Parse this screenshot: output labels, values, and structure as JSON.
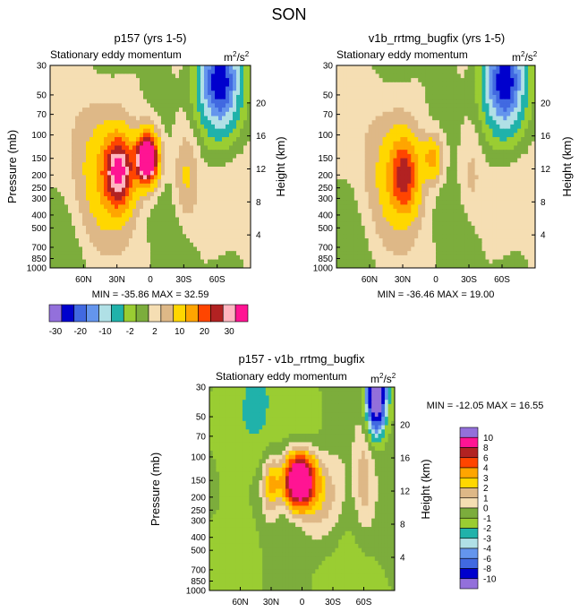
{
  "figure_title": "SON",
  "chart_data": [
    {
      "type": "heatmap",
      "title": "p157 (yrs 1-5)",
      "subtitle_left": "Stationary eddy momentum",
      "units_base": "m",
      "units_sup1": "2",
      "units_mid": "/s",
      "units_sup2": "2",
      "ylabel": "Pressure (mb)",
      "ylabel_right": "Height (km)",
      "xticks": [
        "60N",
        "30N",
        "0",
        "30S",
        "60S"
      ],
      "x_values": [
        60,
        30,
        0,
        -30,
        -60
      ],
      "xlim": [
        90,
        -90
      ],
      "yticks": [
        "30",
        "50",
        "70",
        "100",
        "150",
        "200",
        "250",
        "300",
        "400",
        "500",
        "700",
        "850",
        "1000"
      ],
      "y_values": [
        30,
        50,
        70,
        100,
        150,
        200,
        250,
        300,
        400,
        500,
        700,
        850,
        1000
      ],
      "ylim": [
        1000,
        30
      ],
      "height_ticks": [
        "20",
        "16",
        "12",
        "8",
        "4"
      ],
      "height_values": [
        20,
        16,
        12,
        8,
        4
      ],
      "min_value": -35.86,
      "max_value": 32.59,
      "stats_text": "MIN = -35.86  MAX = 32.59",
      "features": [
        {
          "lat": 28,
          "p": 190,
          "value": 28,
          "sx": 9,
          "sy": 0.42
        },
        {
          "lat": 3,
          "p": 150,
          "value": 32.59,
          "sx": 7,
          "sy": 0.3
        },
        {
          "lat": 3,
          "p": 152,
          "value": 20,
          "sx": 5,
          "sy": 0.22
        },
        {
          "lat": 42,
          "p": 200,
          "value": 8,
          "sx": 18,
          "sy": 0.8
        },
        {
          "lat": -32,
          "p": 210,
          "value": 6,
          "sx": 7,
          "sy": 0.5
        },
        {
          "lat": -62,
          "p": 40,
          "value": -30,
          "sx": 12,
          "sy": 0.55
        },
        {
          "lat": -50,
          "p": 400,
          "value": 1.5,
          "sx": 15,
          "sy": 0.6
        },
        {
          "lat": 70,
          "p": 600,
          "value": -1.5,
          "sx": 15,
          "sy": 0.9
        },
        {
          "lat": -20,
          "p": 500,
          "value": -1.2,
          "sx": 15,
          "sy": 0.7
        }
      ]
    },
    {
      "type": "heatmap",
      "title": "v1b_rrtmg_bugfix (yrs 1-5)",
      "subtitle_left": "Stationary eddy momentum",
      "units_base": "m",
      "units_sup1": "2",
      "units_mid": "/s",
      "units_sup2": "2",
      "ylabel": "",
      "ylabel_right": "Height (km)",
      "xticks": [
        "60N",
        "30N",
        "0",
        "30S",
        "60S"
      ],
      "x_values": [
        60,
        30,
        0,
        -30,
        -60
      ],
      "xlim": [
        90,
        -90
      ],
      "yticks": [
        "30",
        "50",
        "70",
        "100",
        "150",
        "200",
        "250",
        "300",
        "400",
        "500",
        "700",
        "850",
        "1000"
      ],
      "y_values": [
        30,
        50,
        70,
        100,
        150,
        200,
        250,
        300,
        400,
        500,
        700,
        850,
        1000
      ],
      "ylim": [
        1000,
        30
      ],
      "height_ticks": [
        "20",
        "16",
        "12",
        "8",
        "4"
      ],
      "height_values": [
        20,
        16,
        12,
        8,
        4
      ],
      "min_value": -36.46,
      "max_value": 19.0,
      "stats_text": "MIN = -36.46  MAX = 19.00",
      "features": [
        {
          "lat": 28,
          "p": 200,
          "value": 19,
          "sx": 9,
          "sy": 0.45
        },
        {
          "lat": 3,
          "p": 150,
          "value": 12,
          "sx": 6,
          "sy": 0.25
        },
        {
          "lat": 40,
          "p": 210,
          "value": 6,
          "sx": 18,
          "sy": 0.8
        },
        {
          "lat": -32,
          "p": 210,
          "value": 3,
          "sx": 7,
          "sy": 0.5
        },
        {
          "lat": -62,
          "p": 40,
          "value": -30,
          "sx": 12,
          "sy": 0.55
        },
        {
          "lat": -50,
          "p": 400,
          "value": 1.5,
          "sx": 15,
          "sy": 0.6
        },
        {
          "lat": 70,
          "p": 600,
          "value": -1.5,
          "sx": 15,
          "sy": 0.9
        },
        {
          "lat": -20,
          "p": 500,
          "value": -1.2,
          "sx": 15,
          "sy": 0.7
        }
      ]
    },
    {
      "type": "heatmap",
      "title": "p157 - v1b_rrtmg_bugfix",
      "subtitle_left": "Stationary eddy momentum",
      "units_base": "m",
      "units_sup1": "2",
      "units_mid": "/s",
      "units_sup2": "2",
      "ylabel": "Pressure (mb)",
      "ylabel_right": "Height (km)",
      "xticks": [
        "60N",
        "30N",
        "0",
        "30S",
        "60S"
      ],
      "x_values": [
        60,
        30,
        0,
        -30,
        -60
      ],
      "xlim": [
        90,
        -90
      ],
      "yticks": [
        "30",
        "50",
        "70",
        "100",
        "150",
        "200",
        "250",
        "300",
        "400",
        "500",
        "700",
        "850",
        "1000"
      ],
      "y_values": [
        30,
        50,
        70,
        100,
        150,
        200,
        250,
        300,
        400,
        500,
        700,
        850,
        1000
      ],
      "ylim": [
        1000,
        30
      ],
      "height_ticks": [
        "20",
        "16",
        "12",
        "8",
        "4"
      ],
      "height_values": [
        20,
        16,
        12,
        8,
        4
      ],
      "min_value": -12.05,
      "max_value": 16.55,
      "stats_text": "MIN = -12.05  MAX = 16.55",
      "features": [
        {
          "lat": 3,
          "p": 150,
          "value": 16.55,
          "sx": 10,
          "sy": 0.3
        },
        {
          "lat": 30,
          "p": 160,
          "value": 4,
          "sx": 6,
          "sy": 0.35
        },
        {
          "lat": -20,
          "p": 200,
          "value": 3,
          "sx": 18,
          "sy": 0.55
        },
        {
          "lat": -60,
          "p": 150,
          "value": 2,
          "sx": 6,
          "sy": 0.6
        },
        {
          "lat": -72,
          "p": 35,
          "value": -12.05,
          "sx": 6,
          "sy": 0.4
        },
        {
          "lat": 65,
          "p": 60,
          "value": -1.2,
          "sx": 20,
          "sy": 0.7
        },
        {
          "lat": 50,
          "p": 500,
          "value": -1.2,
          "sx": 10,
          "sy": 0.7
        }
      ]
    }
  ],
  "colorbar_top": {
    "labels": [
      "-30",
      "-20",
      "-10",
      "-2",
      "2",
      "10",
      "20",
      "30"
    ],
    "levels": [
      -35,
      -30,
      -25,
      -20,
      -15,
      -10,
      -5,
      -2,
      0,
      2,
      5,
      10,
      15,
      20,
      25,
      30
    ]
  },
  "colorbar_diff": {
    "labels": [
      "10",
      "8",
      "6",
      "4",
      "3",
      "2",
      "1",
      "0",
      "-1",
      "-2",
      "-3",
      "-4",
      "-6",
      "-8",
      "-10"
    ],
    "levels": [
      -10,
      -8,
      -6,
      -4,
      -3,
      -2,
      -1,
      0,
      1,
      2,
      3,
      4,
      6,
      8,
      10
    ]
  },
  "palette": [
    "#9370db",
    "#0000cd",
    "#4169e1",
    "#6495ed",
    "#b0e0e6",
    "#20b2aa",
    "#9acd32",
    "#7cad3c",
    "#f5deb3",
    "#deb887",
    "#ffd700",
    "#ffa500",
    "#ff4500",
    "#b22222",
    "#ffb6c1",
    "#ff1493"
  ]
}
